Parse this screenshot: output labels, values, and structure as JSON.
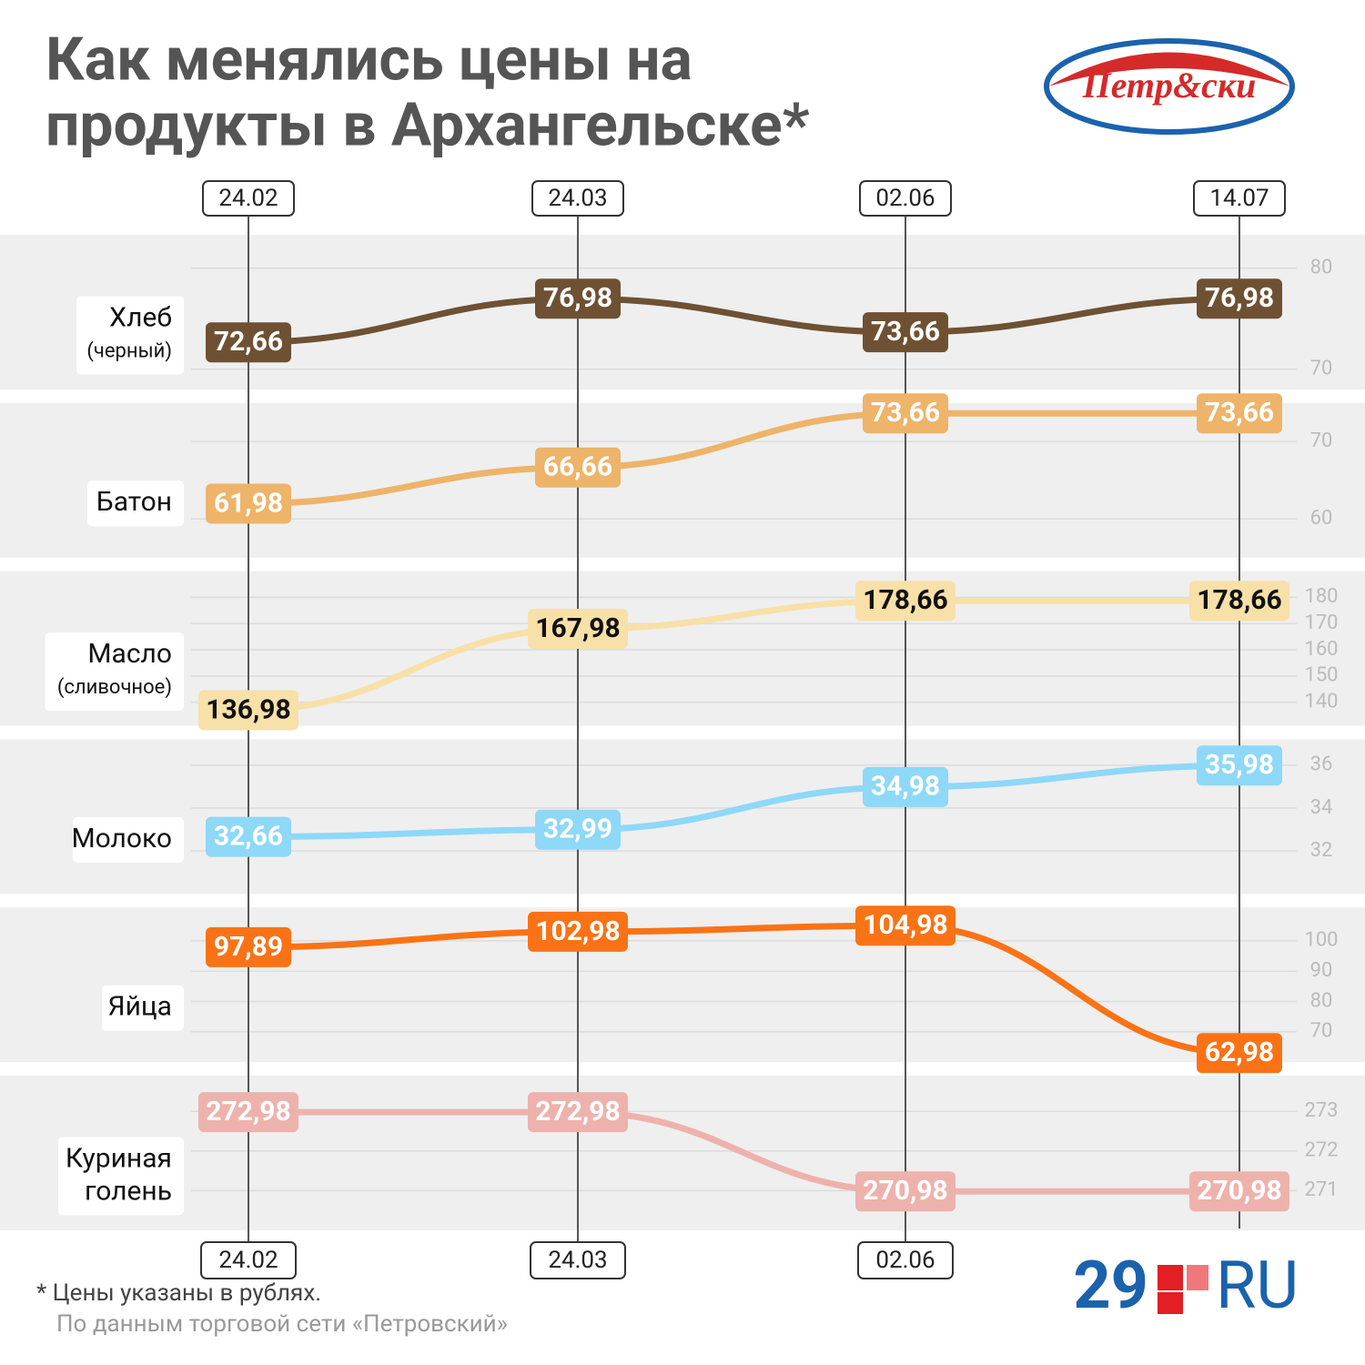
{
  "title": [
    "Как менялись цены на",
    "продукты в Архангельске*"
  ],
  "brand_logo": "Петр&ски",
  "publisher_logo": [
    "29",
    "RU"
  ],
  "footnote": "* Цены указаны в рублях.",
  "source": "По данным торговой сети «Петровский»",
  "chart_data": [
    {
      "type": "line",
      "label": [
        "Хлеб",
        "(черный)"
      ],
      "categories": [
        "24.02",
        "24.03",
        "02.06",
        "14.07"
      ],
      "values": [
        72.66,
        76.98,
        73.66,
        76.98
      ],
      "value_labels": [
        "72,66",
        "76,98",
        "73,66",
        "76,98"
      ],
      "color": "#6e5133",
      "ylim": [
        68,
        83.3
      ],
      "yticks": [
        70,
        80
      ],
      "grid": true
    },
    {
      "type": "line",
      "label": [
        "Батон"
      ],
      "categories": [
        "24.02",
        "24.03",
        "02.06",
        "14.07"
      ],
      "values": [
        61.98,
        66.66,
        73.66,
        73.66
      ],
      "value_labels": [
        "61,98",
        "66,66",
        "73,66",
        "73,66"
      ],
      "color": "#edb46a",
      "ylim": [
        55,
        75
      ],
      "yticks": [
        60,
        70
      ],
      "grid": true
    },
    {
      "type": "line",
      "label": [
        "Масло",
        "(сливочное)"
      ],
      "categories": [
        "24.02",
        "24.03",
        "02.06",
        "14.07"
      ],
      "values": [
        136.98,
        167.98,
        178.66,
        178.66
      ],
      "value_labels": [
        "136,98",
        "167,98",
        "178,66",
        "178,66"
      ],
      "color": "#f8e0a9",
      "ylim": [
        131,
        190
      ],
      "yticks": [
        140,
        150,
        160,
        170,
        180
      ],
      "grid": true
    },
    {
      "type": "line",
      "label": [
        "Молоко"
      ],
      "categories": [
        "24.02",
        "24.03",
        "02.06",
        "14.07"
      ],
      "values": [
        32.66,
        32.99,
        34.98,
        35.98
      ],
      "value_labels": [
        "32,66",
        "32,99",
        "34,98",
        "35,98"
      ],
      "color": "#8ed8f8",
      "ylim": [
        30,
        37.2
      ],
      "yticks": [
        32,
        34,
        36
      ],
      "grid": true
    },
    {
      "type": "line",
      "label": [
        "Яйца"
      ],
      "categories": [
        "24.02",
        "24.03",
        "02.06",
        "14.07"
      ],
      "values": [
        97.89,
        102.98,
        104.98,
        62.98
      ],
      "value_labels": [
        "97,89",
        "102,98",
        "104,98",
        "62,98"
      ],
      "color": "#f97316",
      "ylim": [
        60,
        111
      ],
      "yticks": [
        70,
        80,
        90,
        100
      ],
      "grid": true
    },
    {
      "type": "line",
      "label": [
        "Куриная",
        "голень"
      ],
      "categories": [
        "24.02",
        "24.03",
        "02.06",
        "14.07"
      ],
      "values": [
        272.98,
        272.98,
        270.98,
        270.98
      ],
      "value_labels": [
        "272,98",
        "272,98",
        "270,98",
        "270,98"
      ],
      "color": "#eeb2ad",
      "ylim": [
        270,
        273.9
      ],
      "yticks": [
        271,
        272,
        273
      ],
      "grid": true
    }
  ]
}
